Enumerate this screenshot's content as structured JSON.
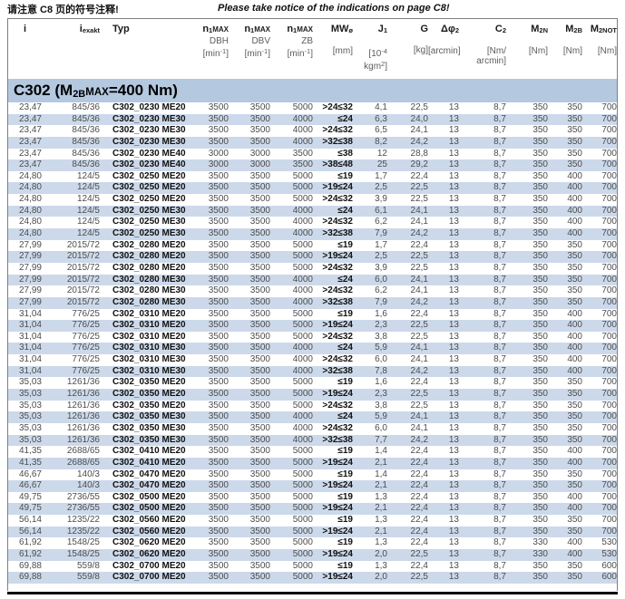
{
  "notice": {
    "zh": "请注意 C8 页的符号注释!",
    "en": "Please take notice of the indications on page C8!"
  },
  "section": {
    "title": [
      {
        "t": "C302 (M"
      },
      {
        "t": "2B",
        "s": "sub"
      },
      {
        "t": "MAX",
        "s": "sc"
      },
      {
        "t": "=400 Nm)"
      }
    ]
  },
  "colors": {
    "stripe_row": "#ccd9ea",
    "section_band": "#b4c8e0",
    "table_border": "#7f7f7f",
    "data_text": "#4d4d4d",
    "bottom_rule": "#000000"
  },
  "table": {
    "columns": [
      {
        "id": "i",
        "align": "center",
        "title": [
          {
            "t": "i"
          }
        ]
      },
      {
        "id": "iexakt",
        "title": [
          {
            "t": "i"
          },
          {
            "t": "exakt",
            "s": "sub"
          }
        ]
      },
      {
        "id": "typ",
        "align": "left",
        "title": [
          {
            "t": "Typ"
          }
        ]
      },
      {
        "id": "n1max-dbh",
        "title": [
          {
            "t": "n"
          },
          {
            "t": "1",
            "s": "sub"
          },
          {
            "t": "MAX",
            "s": "sc"
          }
        ],
        "sub": "DBH",
        "unit": [
          [
            {
              "t": "[min"
            },
            {
              "t": "-1",
              "s": "sup"
            },
            {
              "t": "]"
            }
          ]
        ]
      },
      {
        "id": "n1max-dbv",
        "title": [
          {
            "t": "n"
          },
          {
            "t": "1",
            "s": "sub"
          },
          {
            "t": "MAX",
            "s": "sc"
          }
        ],
        "sub": "DBV",
        "unit": [
          [
            {
              "t": "[min"
            },
            {
              "t": "-1",
              "s": "sup"
            },
            {
              "t": "]"
            }
          ]
        ]
      },
      {
        "id": "n1max-zb",
        "title": [
          {
            "t": "n"
          },
          {
            "t": "1",
            "s": "sub"
          },
          {
            "t": "MAX",
            "s": "sc"
          }
        ],
        "sub": "ZB",
        "unit": [
          [
            {
              "t": "[min"
            },
            {
              "t": "-1",
              "s": "sup"
            },
            {
              "t": "]"
            }
          ]
        ]
      },
      {
        "id": "mw-diameter",
        "bold_values": true,
        "title": [
          {
            "t": "MW"
          },
          {
            "t": "ø",
            "s": "sub"
          }
        ],
        "unit": [
          [
            {
              "t": "[mm]"
            }
          ]
        ]
      },
      {
        "id": "j1",
        "title": [
          {
            "t": "J"
          },
          {
            "t": "1",
            "s": "sub"
          }
        ],
        "unit": [
          [
            {
              "t": "[10"
            },
            {
              "t": "-4",
              "s": "sup"
            }
          ],
          [
            {
              "t": "kgm"
            },
            {
              "t": "2",
              "s": "sup"
            },
            {
              "t": "]"
            }
          ]
        ]
      },
      {
        "id": "g",
        "title": [
          {
            "t": "G"
          }
        ],
        "unit": [
          [
            {
              "t": "[kg]"
            }
          ]
        ]
      },
      {
        "id": "delta-phi2",
        "title": [
          {
            "t": "Δφ"
          },
          {
            "t": "2",
            "s": "sub"
          }
        ],
        "unit": [
          [
            {
              "t": "[arcmin]"
            }
          ]
        ]
      },
      {
        "id": "c2",
        "title": [
          {
            "t": "C"
          },
          {
            "t": "2",
            "s": "sub"
          }
        ],
        "unit": [
          [
            {
              "t": "[Nm/"
            }
          ],
          [
            {
              "t": "arcmin]"
            }
          ]
        ]
      },
      {
        "id": "m2n",
        "title": [
          {
            "t": "M"
          },
          {
            "t": "2N",
            "s": "sub"
          }
        ],
        "unit": [
          [
            {
              "t": "[Nm]"
            }
          ]
        ]
      },
      {
        "id": "m2b",
        "title": [
          {
            "t": "M"
          },
          {
            "t": "2B",
            "s": "sub"
          }
        ],
        "unit": [
          [
            {
              "t": "[Nm]"
            }
          ]
        ]
      },
      {
        "id": "m2not",
        "title": [
          {
            "t": "M"
          },
          {
            "t": "2NOT",
            "s": "sub"
          }
        ],
        "unit": [
          [
            {
              "t": "[Nm]"
            }
          ]
        ]
      }
    ],
    "rows": [
      [
        "23,47",
        "845/36",
        "C302_0230 ME20",
        "3500",
        "3500",
        "5000",
        ">24≤32",
        "4,1",
        "22,5",
        "13",
        "8,7",
        "350",
        "350",
        "700"
      ],
      [
        "23,47",
        "845/36",
        "C302_0230 ME30",
        "3500",
        "3500",
        "4000",
        "≤24",
        "6,3",
        "24,0",
        "13",
        "8,7",
        "350",
        "350",
        "700"
      ],
      [
        "23,47",
        "845/36",
        "C302_0230 ME30",
        "3500",
        "3500",
        "4000",
        ">24≤32",
        "6,5",
        "24,1",
        "13",
        "8,7",
        "350",
        "350",
        "700"
      ],
      [
        "23,47",
        "845/36",
        "C302_0230 ME30",
        "3500",
        "3500",
        "4000",
        ">32≤38",
        "8,2",
        "24,2",
        "13",
        "8,7",
        "350",
        "350",
        "700"
      ],
      [
        "23,47",
        "845/36",
        "C302_0230 ME40",
        "3000",
        "3000",
        "3500",
        "≤38",
        "12",
        "28,8",
        "13",
        "8,7",
        "350",
        "350",
        "700"
      ],
      [
        "23,47",
        "845/36",
        "C302_0230 ME40",
        "3000",
        "3000",
        "3500",
        ">38≤48",
        "25",
        "29,2",
        "13",
        "8,7",
        "350",
        "350",
        "700"
      ],
      [
        "24,80",
        "124/5",
        "C302_0250 ME20",
        "3500",
        "3500",
        "5000",
        "≤19",
        "1,7",
        "22,4",
        "13",
        "8,7",
        "350",
        "400",
        "700"
      ],
      [
        "24,80",
        "124/5",
        "C302_0250 ME20",
        "3500",
        "3500",
        "5000",
        ">19≤24",
        "2,5",
        "22,5",
        "13",
        "8,7",
        "350",
        "400",
        "700"
      ],
      [
        "24,80",
        "124/5",
        "C302_0250 ME20",
        "3500",
        "3500",
        "5000",
        ">24≤32",
        "3,9",
        "22,5",
        "13",
        "8,7",
        "350",
        "400",
        "700"
      ],
      [
        "24,80",
        "124/5",
        "C302_0250 ME30",
        "3500",
        "3500",
        "4000",
        "≤24",
        "6,1",
        "24,1",
        "13",
        "8,7",
        "350",
        "400",
        "700"
      ],
      [
        "24,80",
        "124/5",
        "C302_0250 ME30",
        "3500",
        "3500",
        "4000",
        ">24≤32",
        "6,2",
        "24,1",
        "13",
        "8,7",
        "350",
        "400",
        "700"
      ],
      [
        "24,80",
        "124/5",
        "C302_0250 ME30",
        "3500",
        "3500",
        "4000",
        ">32≤38",
        "7,9",
        "24,2",
        "13",
        "8,7",
        "350",
        "400",
        "700"
      ],
      [
        "27,99",
        "2015/72",
        "C302_0280 ME20",
        "3500",
        "3500",
        "5000",
        "≤19",
        "1,7",
        "22,4",
        "13",
        "8,7",
        "350",
        "350",
        "700"
      ],
      [
        "27,99",
        "2015/72",
        "C302_0280 ME20",
        "3500",
        "3500",
        "5000",
        ">19≤24",
        "2,5",
        "22,5",
        "13",
        "8,7",
        "350",
        "350",
        "700"
      ],
      [
        "27,99",
        "2015/72",
        "C302_0280 ME20",
        "3500",
        "3500",
        "5000",
        ">24≤32",
        "3,9",
        "22,5",
        "13",
        "8,7",
        "350",
        "350",
        "700"
      ],
      [
        "27,99",
        "2015/72",
        "C302_0280 ME30",
        "3500",
        "3500",
        "4000",
        "≤24",
        "6,0",
        "24,1",
        "13",
        "8,7",
        "350",
        "350",
        "700"
      ],
      [
        "27,99",
        "2015/72",
        "C302_0280 ME30",
        "3500",
        "3500",
        "4000",
        ">24≤32",
        "6,2",
        "24,1",
        "13",
        "8,7",
        "350",
        "350",
        "700"
      ],
      [
        "27,99",
        "2015/72",
        "C302_0280 ME30",
        "3500",
        "3500",
        "4000",
        ">32≤38",
        "7,9",
        "24,2",
        "13",
        "8,7",
        "350",
        "350",
        "700"
      ],
      [
        "31,04",
        "776/25",
        "C302_0310 ME20",
        "3500",
        "3500",
        "5000",
        "≤19",
        "1,6",
        "22,4",
        "13",
        "8,7",
        "350",
        "400",
        "700"
      ],
      [
        "31,04",
        "776/25",
        "C302_0310 ME20",
        "3500",
        "3500",
        "5000",
        ">19≤24",
        "2,3",
        "22,5",
        "13",
        "8,7",
        "350",
        "400",
        "700"
      ],
      [
        "31,04",
        "776/25",
        "C302_0310 ME20",
        "3500",
        "3500",
        "5000",
        ">24≤32",
        "3,8",
        "22,5",
        "13",
        "8,7",
        "350",
        "400",
        "700"
      ],
      [
        "31,04",
        "776/25",
        "C302_0310 ME30",
        "3500",
        "3500",
        "4000",
        "≤24",
        "5,9",
        "24,1",
        "13",
        "8,7",
        "350",
        "400",
        "700"
      ],
      [
        "31,04",
        "776/25",
        "C302_0310 ME30",
        "3500",
        "3500",
        "4000",
        ">24≤32",
        "6,0",
        "24,1",
        "13",
        "8,7",
        "350",
        "400",
        "700"
      ],
      [
        "31,04",
        "776/25",
        "C302_0310 ME30",
        "3500",
        "3500",
        "4000",
        ">32≤38",
        "7,8",
        "24,2",
        "13",
        "8,7",
        "350",
        "400",
        "700"
      ],
      [
        "35,03",
        "1261/36",
        "C302_0350 ME20",
        "3500",
        "3500",
        "5000",
        "≤19",
        "1,6",
        "22,4",
        "13",
        "8,7",
        "350",
        "350",
        "700"
      ],
      [
        "35,03",
        "1261/36",
        "C302_0350 ME20",
        "3500",
        "3500",
        "5000",
        ">19≤24",
        "2,3",
        "22,5",
        "13",
        "8,7",
        "350",
        "350",
        "700"
      ],
      [
        "35,03",
        "1261/36",
        "C302_0350 ME20",
        "3500",
        "3500",
        "5000",
        ">24≤32",
        "3,8",
        "22,5",
        "13",
        "8,7",
        "350",
        "350",
        "700"
      ],
      [
        "35,03",
        "1261/36",
        "C302_0350 ME30",
        "3500",
        "3500",
        "4000",
        "≤24",
        "5,9",
        "24,1",
        "13",
        "8,7",
        "350",
        "350",
        "700"
      ],
      [
        "35,03",
        "1261/36",
        "C302_0350 ME30",
        "3500",
        "3500",
        "4000",
        ">24≤32",
        "6,0",
        "24,1",
        "13",
        "8,7",
        "350",
        "350",
        "700"
      ],
      [
        "35,03",
        "1261/36",
        "C302_0350 ME30",
        "3500",
        "3500",
        "4000",
        ">32≤38",
        "7,7",
        "24,2",
        "13",
        "8,7",
        "350",
        "350",
        "700"
      ],
      [
        "41,35",
        "2688/65",
        "C302_0410 ME20",
        "3500",
        "3500",
        "5000",
        "≤19",
        "1,4",
        "22,4",
        "13",
        "8,7",
        "350",
        "400",
        "700"
      ],
      [
        "41,35",
        "2688/65",
        "C302_0410 ME20",
        "3500",
        "3500",
        "5000",
        ">19≤24",
        "2,1",
        "22,4",
        "13",
        "8,7",
        "350",
        "400",
        "700"
      ],
      [
        "46,67",
        "140/3",
        "C302_0470 ME20",
        "3500",
        "3500",
        "5000",
        "≤19",
        "1,4",
        "22,4",
        "13",
        "8,7",
        "350",
        "350",
        "700"
      ],
      [
        "46,67",
        "140/3",
        "C302_0470 ME20",
        "3500",
        "3500",
        "5000",
        ">19≤24",
        "2,1",
        "22,4",
        "13",
        "8,7",
        "350",
        "350",
        "700"
      ],
      [
        "49,75",
        "2736/55",
        "C302_0500 ME20",
        "3500",
        "3500",
        "5000",
        "≤19",
        "1,3",
        "22,4",
        "13",
        "8,7",
        "350",
        "400",
        "700"
      ],
      [
        "49,75",
        "2736/55",
        "C302_0500 ME20",
        "3500",
        "3500",
        "5000",
        ">19≤24",
        "2,1",
        "22,4",
        "13",
        "8,7",
        "350",
        "400",
        "700"
      ],
      [
        "56,14",
        "1235/22",
        "C302_0560 ME20",
        "3500",
        "3500",
        "5000",
        "≤19",
        "1,3",
        "22,4",
        "13",
        "8,7",
        "350",
        "350",
        "700"
      ],
      [
        "56,14",
        "1235/22",
        "C302_0560 ME20",
        "3500",
        "3500",
        "5000",
        ">19≤24",
        "2,1",
        "22,4",
        "13",
        "8,7",
        "350",
        "350",
        "700"
      ],
      [
        "61,92",
        "1548/25",
        "C302_0620 ME20",
        "3500",
        "3500",
        "5000",
        "≤19",
        "1,3",
        "22,4",
        "13",
        "8,7",
        "330",
        "400",
        "530"
      ],
      [
        "61,92",
        "1548/25",
        "C302_0620 ME20",
        "3500",
        "3500",
        "5000",
        ">19≤24",
        "2,0",
        "22,5",
        "13",
        "8,7",
        "330",
        "400",
        "530"
      ],
      [
        "69,88",
        "559/8",
        "C302_0700 ME20",
        "3500",
        "3500",
        "5000",
        "≤19",
        "1,3",
        "22,4",
        "13",
        "8,7",
        "350",
        "350",
        "600"
      ],
      [
        "69,88",
        "559/8",
        "C302_0700 ME20",
        "3500",
        "3500",
        "5000",
        ">19≤24",
        "2,0",
        "22,5",
        "13",
        "8,7",
        "350",
        "350",
        "600"
      ]
    ]
  }
}
